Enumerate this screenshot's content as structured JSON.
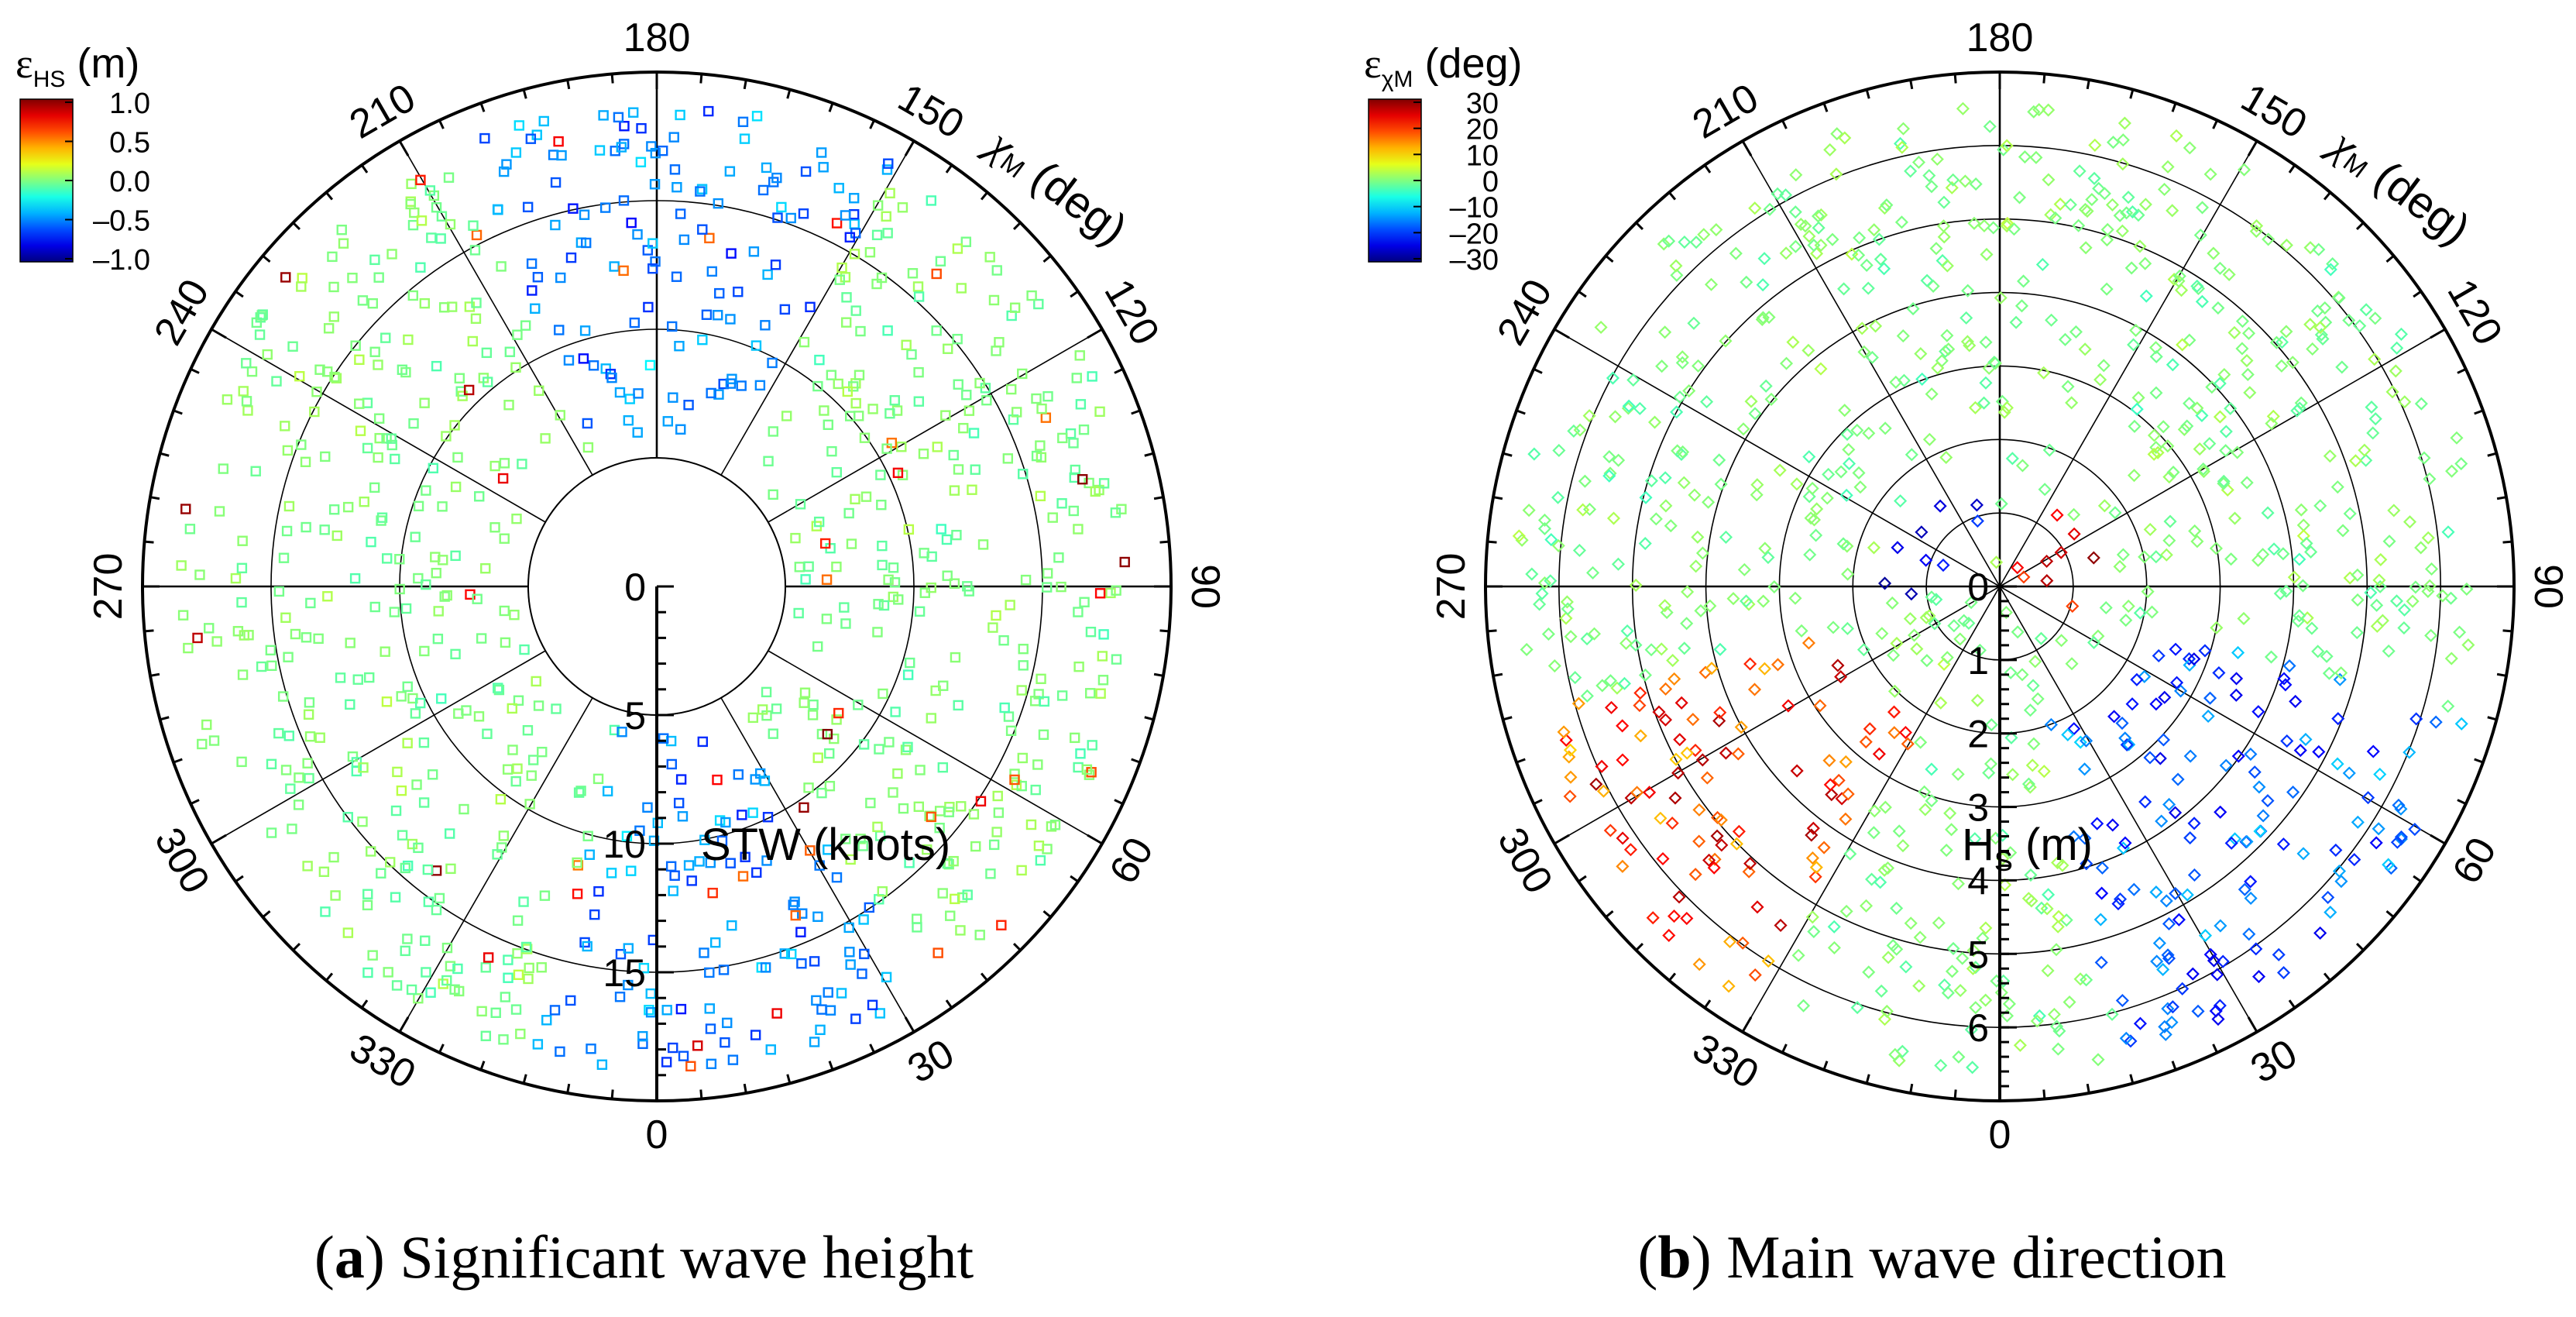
{
  "chart_data": [
    {
      "type": "scatter",
      "projection": "polar",
      "caption_label": "a",
      "caption_text": "Significant wave height",
      "angle_axis": {
        "label_symbol": "χ",
        "label_subscript": "M",
        "label_unit": "(deg)",
        "ticks": [
          "0",
          "30",
          "60",
          "90",
          "120",
          "150",
          "180",
          "210",
          "240",
          "270",
          "300",
          "330"
        ],
        "range": [
          0,
          360
        ]
      },
      "radial_axis": {
        "label": "STW (knots)",
        "ticks": [
          "0",
          "5",
          "10",
          "15"
        ],
        "range": [
          0,
          20
        ],
        "inner_hole": 5
      },
      "colorbar": {
        "title_symbol": "ε",
        "title_subscript": "HS",
        "title_unit": "(m)",
        "range": [
          -1.0,
          1.0
        ],
        "ticks": [
          "1.0",
          "0.5",
          "0.0",
          "–0.5",
          "–1.0"
        ],
        "colormap": "jet"
      },
      "marker": "square",
      "point_summary": "Approx. 950 points spread over STW 5–19 knots at all headings; errors mostly near 0.0 m (green), negative errors (cyan/blue) concentrated near χM 0°–30° and 150°–200°, a few positive (yellow/red) near 90° and 300°."
    },
    {
      "type": "scatter",
      "projection": "polar",
      "caption_label": "b",
      "caption_text": "Main wave direction",
      "angle_axis": {
        "label_symbol": "χ",
        "label_subscript": "M",
        "label_unit": "(deg)",
        "ticks": [
          "0",
          "30",
          "60",
          "90",
          "120",
          "150",
          "180",
          "210",
          "240",
          "270",
          "300",
          "330"
        ],
        "range": [
          0,
          360
        ]
      },
      "radial_axis": {
        "label": "H",
        "label_subscript": "S",
        "label_unit": "(m)",
        "ticks": [
          "0",
          "1",
          "2",
          "3",
          "4",
          "5",
          "6"
        ],
        "range": [
          0,
          7
        ]
      },
      "colorbar": {
        "title_symbol": "ε",
        "title_subscript": "χM",
        "title_unit": "(deg)",
        "range": [
          -30,
          30
        ],
        "ticks": [
          "30",
          "20",
          "10",
          "0",
          "–10",
          "–20",
          "–30"
        ],
        "colormap": "jet"
      },
      "marker": "diamond",
      "point_summary": "Approx. 950 points over Hs 0.3–6.5 m at all headings; errors mostly near 0° (green); positive errors (red/orange) clustered near the center at χM 60°–150° and at χM 290°–320°; negative errors (blue/cyan) near the center at χM 200°–270° and at χM 20°–70°."
    }
  ]
}
